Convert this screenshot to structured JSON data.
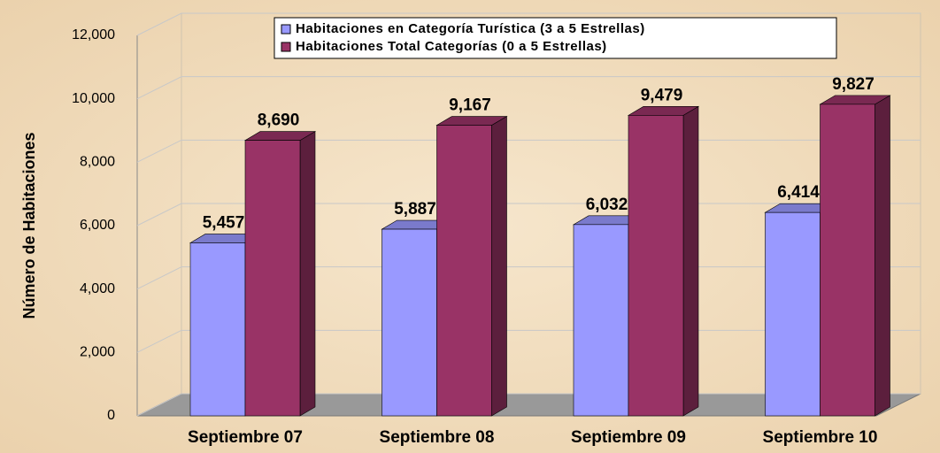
{
  "chart_data": {
    "type": "bar3d",
    "y_label": "Número de Habitaciones",
    "categories": [
      "Septiembre 07",
      "Septiembre 08",
      "Septiembre 09",
      "Septiembre 10"
    ],
    "series": [
      {
        "name": "Habitaciones en Categoría Turística (3 a 5 Estrellas)",
        "color": "#9999ff",
        "values": [
          5457,
          5887,
          6032,
          6414
        ],
        "value_labels": [
          "5,457",
          "5,887",
          "6,032",
          "6,414"
        ]
      },
      {
        "name": "Habitaciones Total Categorías (0 a 5 Estrellas)",
        "color": "#993366",
        "values": [
          8690,
          9167,
          9479,
          9827
        ],
        "value_labels": [
          "8,690",
          "9,167",
          "9,479",
          "9,827"
        ]
      }
    ],
    "ylim": [
      0,
      12000
    ],
    "yticks": [
      0,
      {
        "value": 2000,
        "label": "2,000"
      },
      {
        "value": 4000,
        "label": "4,000"
      },
      {
        "value": 6000,
        "label": "6,000"
      },
      {
        "value": 8000,
        "label": "8,000"
      },
      {
        "value": 10000,
        "label": "10,000"
      },
      {
        "value": 12000,
        "label": "12,000"
      }
    ],
    "grid": true
  }
}
